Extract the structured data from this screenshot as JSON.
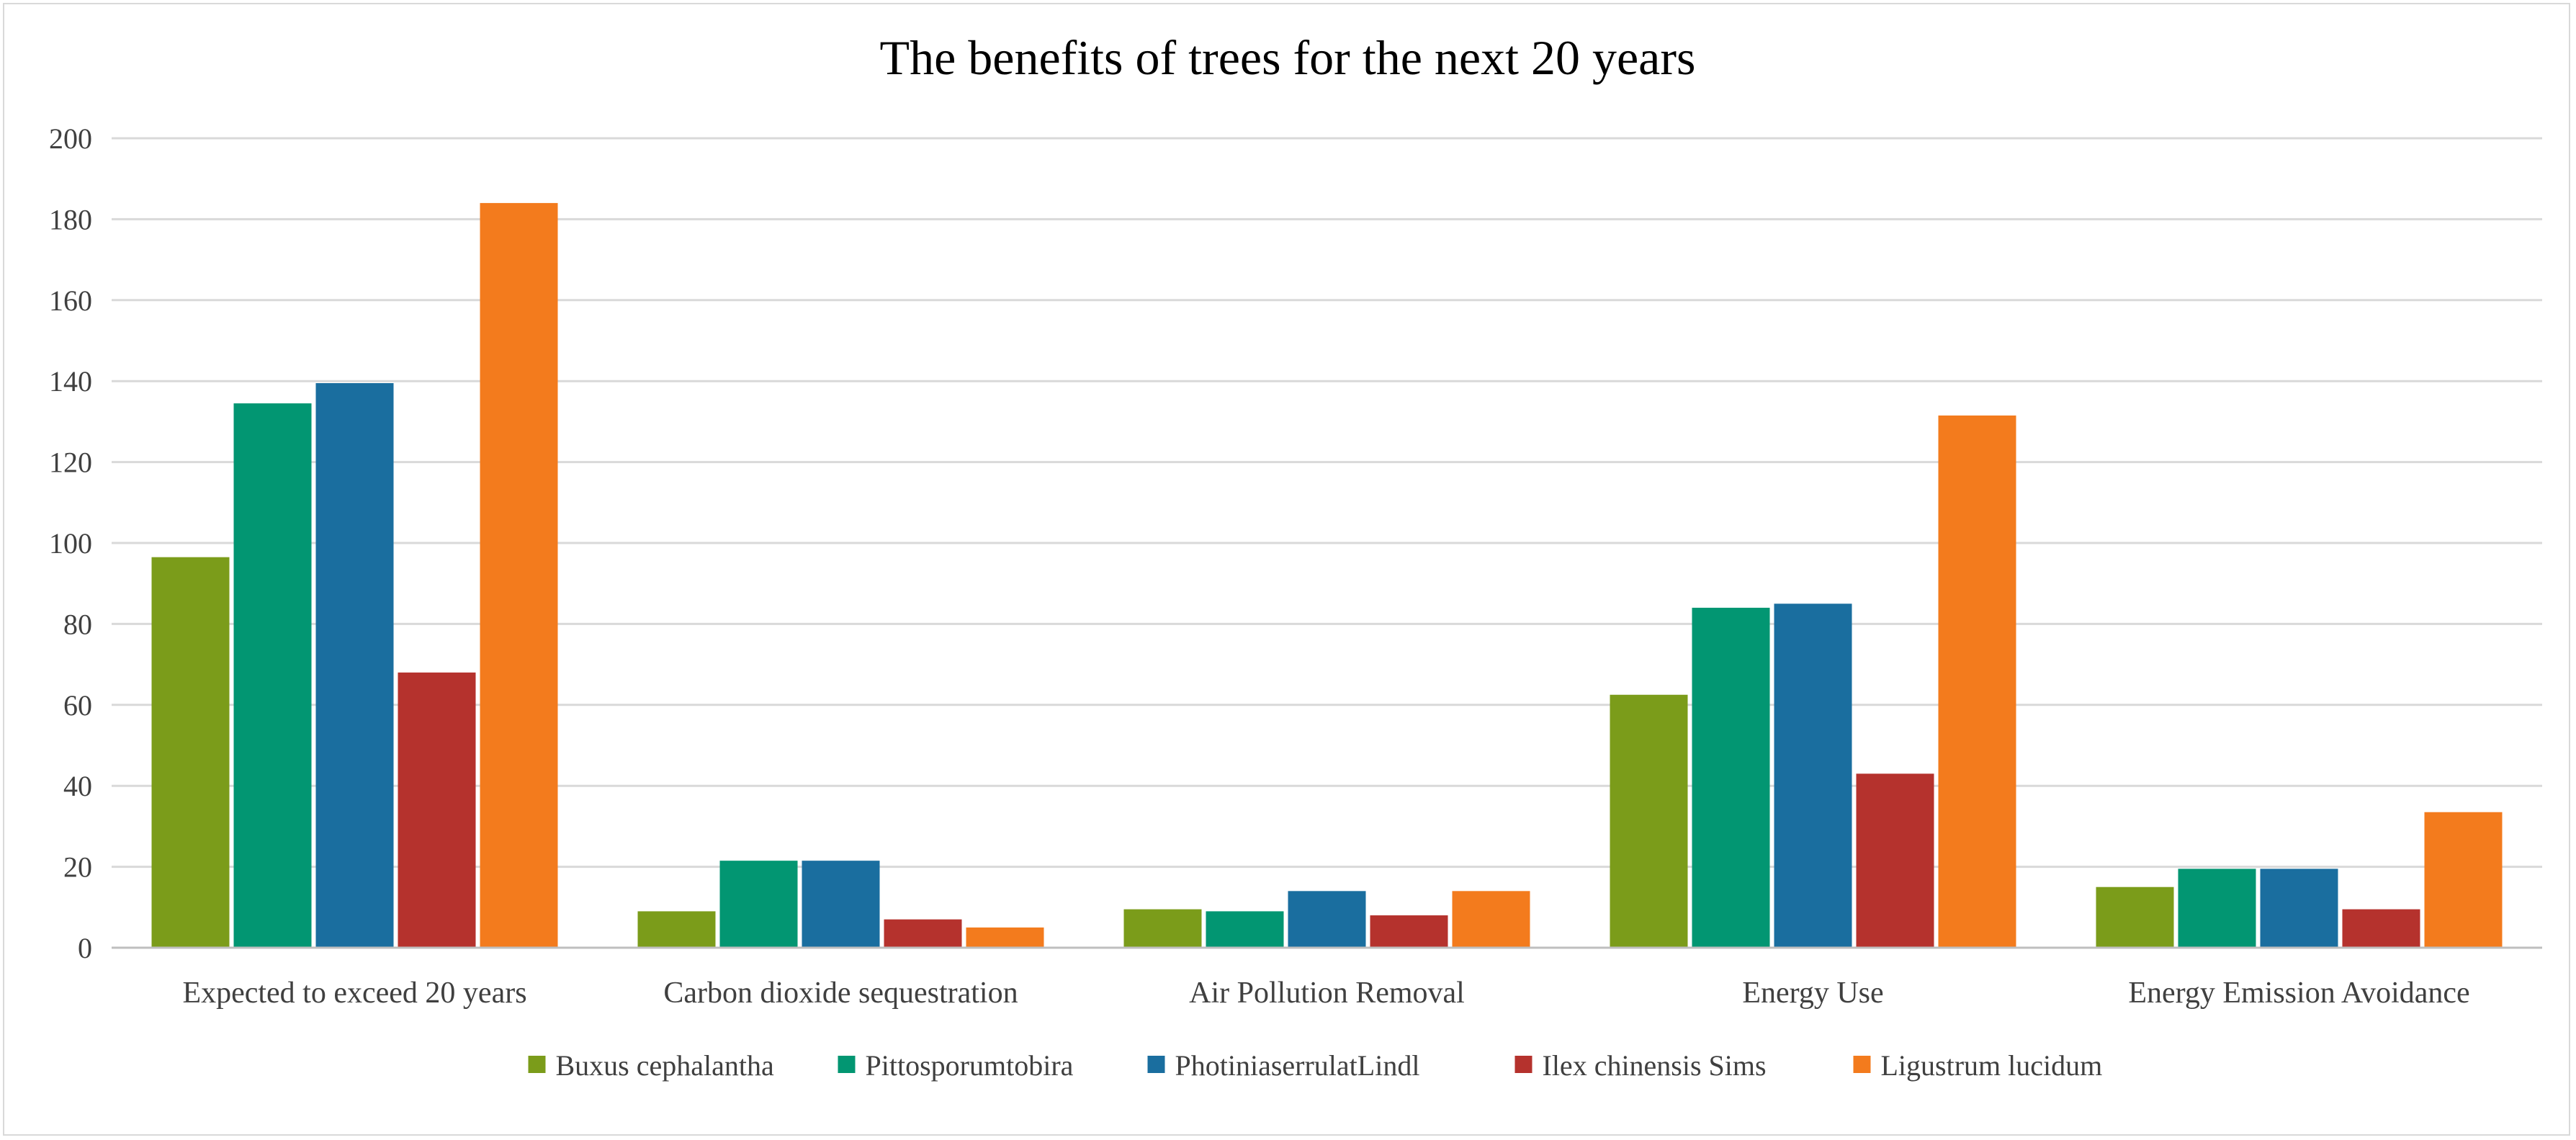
{
  "chart_data": {
    "type": "bar",
    "title": "The benefits of trees for the next 20 years",
    "xlabel": "",
    "ylabel": "",
    "ylim": [
      0,
      200
    ],
    "yticks": [
      0,
      20,
      40,
      60,
      80,
      100,
      120,
      140,
      160,
      180,
      200
    ],
    "grid": true,
    "legend_position": "bottom",
    "categories": [
      "Expected to exceed 20 years",
      "Carbon dioxide sequestration",
      "Air Pollution Removal",
      "Energy Use",
      "Energy Emission Avoidance"
    ],
    "series": [
      {
        "name": "Buxus cephalantha",
        "color": "#7b9c1a",
        "values": [
          96.5,
          9,
          9.5,
          62.5,
          15
        ]
      },
      {
        "name": "Pittosporumtobira",
        "color": "#029672",
        "values": [
          134.5,
          21.5,
          9,
          84,
          19.5
        ]
      },
      {
        "name": "PhotiniaserrulatLindl",
        "color": "#1a6e9f",
        "values": [
          139.5,
          21.5,
          14,
          85,
          19.5
        ]
      },
      {
        "name": "Ilex chinensis Sims",
        "color": "#b5322d",
        "values": [
          68,
          7,
          8,
          43,
          9.5
        ]
      },
      {
        "name": "Ligustrum lucidum",
        "color": "#f37b1d",
        "values": [
          184,
          5,
          14,
          131.5,
          33.5
        ]
      }
    ]
  }
}
